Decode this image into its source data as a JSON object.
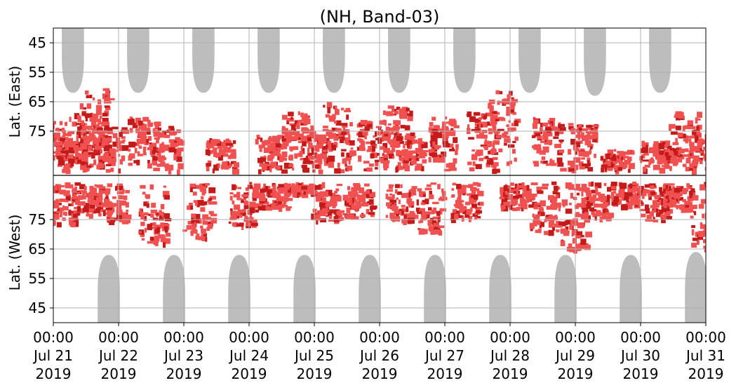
{
  "chart_data": {
    "type": "heatmap",
    "title": "(NH, Band-03)",
    "ylabel_east": "Lat. (East)",
    "ylabel_west": "Lat. (West)",
    "x_range_days": [
      "2019-07-21",
      "2019-07-31"
    ],
    "x_ticks": [
      {
        "time": "00:00",
        "date": "Jul 21",
        "year": "2019"
      },
      {
        "time": "00:00",
        "date": "Jul 22",
        "year": "2019"
      },
      {
        "time": "00:00",
        "date": "Jul 23",
        "year": "2019"
      },
      {
        "time": "00:00",
        "date": "Jul 24",
        "year": "2019"
      },
      {
        "time": "00:00",
        "date": "Jul 25",
        "year": "2019"
      },
      {
        "time": "00:00",
        "date": "Jul 26",
        "year": "2019"
      },
      {
        "time": "00:00",
        "date": "Jul 27",
        "year": "2019"
      },
      {
        "time": "00:00",
        "date": "Jul 28",
        "year": "2019"
      },
      {
        "time": "00:00",
        "date": "Jul 29",
        "year": "2019"
      },
      {
        "time": "00:00",
        "date": "Jul 30",
        "year": "2019"
      },
      {
        "time": "00:00",
        "date": "Jul 31",
        "year": "2019"
      }
    ],
    "y_ticks_east": [
      "45",
      "55",
      "65",
      "75"
    ],
    "y_ticks_west": [
      "75",
      "65",
      "55",
      "45"
    ],
    "y_tick_values_east": [
      45,
      55,
      65,
      75
    ],
    "y_tick_values_west": [
      75,
      65,
      55,
      45
    ],
    "lat_range_per_hemisphere": [
      40,
      90
    ],
    "grid": true,
    "colors": {
      "grey_region": "#bdbdbd",
      "light_red": "#f05050",
      "dark_red": "#c41a1a",
      "grid": "#b0b0b0",
      "divider": "#000000"
    },
    "grey_east": [
      {
        "day": 0.3,
        "lat_min": 62
      },
      {
        "day": 1.3,
        "lat_min": 62
      },
      {
        "day": 2.3,
        "lat_min": 62
      },
      {
        "day": 3.3,
        "lat_min": 62
      },
      {
        "day": 4.3,
        "lat_min": 62
      },
      {
        "day": 5.3,
        "lat_min": 62
      },
      {
        "day": 6.3,
        "lat_min": 62
      },
      {
        "day": 7.3,
        "lat_min": 62
      },
      {
        "day": 8.3,
        "lat_min": 63
      },
      {
        "day": 9.3,
        "lat_min": 62
      }
    ],
    "grey_west": [
      {
        "day": 0.85,
        "lat_min": 63
      },
      {
        "day": 1.85,
        "lat_min": 63
      },
      {
        "day": 2.85,
        "lat_min": 63
      },
      {
        "day": 3.85,
        "lat_min": 63
      },
      {
        "day": 4.85,
        "lat_min": 63
      },
      {
        "day": 5.85,
        "lat_min": 63
      },
      {
        "day": 6.85,
        "lat_min": 63
      },
      {
        "day": 7.85,
        "lat_min": 63
      },
      {
        "day": 8.85,
        "lat_min": 63
      },
      {
        "day": 9.85,
        "lat_min": 64
      }
    ],
    "red_east": [
      {
        "day": 0.05,
        "lat_min": 70,
        "lat_max": 88
      },
      {
        "day": 0.25,
        "lat_min": 78,
        "lat_max": 88
      },
      {
        "day": 0.5,
        "lat_min": 68,
        "lat_max": 88
      },
      {
        "day": 0.62,
        "lat_min": 60,
        "lat_max": 88
      },
      {
        "day": 0.85,
        "lat_min": 73,
        "lat_max": 88
      },
      {
        "day": 1.35,
        "lat_min": 70,
        "lat_max": 86
      },
      {
        "day": 1.7,
        "lat_min": 73,
        "lat_max": 88
      },
      {
        "day": 2.55,
        "lat_min": 77,
        "lat_max": 88
      },
      {
        "day": 3.3,
        "lat_min": 76,
        "lat_max": 88
      },
      {
        "day": 3.7,
        "lat_min": 68,
        "lat_max": 88
      },
      {
        "day": 4.0,
        "lat_min": 73,
        "lat_max": 88
      },
      {
        "day": 4.35,
        "lat_min": 65,
        "lat_max": 88
      },
      {
        "day": 4.85,
        "lat_min": 71,
        "lat_max": 88
      },
      {
        "day": 5.25,
        "lat_min": 66,
        "lat_max": 88
      },
      {
        "day": 5.45,
        "lat_min": 76,
        "lat_max": 88
      },
      {
        "day": 5.95,
        "lat_min": 70,
        "lat_max": 88
      },
      {
        "day": 6.55,
        "lat_min": 68,
        "lat_max": 88
      },
      {
        "day": 6.85,
        "lat_min": 61,
        "lat_max": 88
      },
      {
        "day": 7.55,
        "lat_min": 70,
        "lat_max": 88
      },
      {
        "day": 8.1,
        "lat_min": 72,
        "lat_max": 88
      },
      {
        "day": 8.6,
        "lat_min": 81,
        "lat_max": 88
      },
      {
        "day": 9.2,
        "lat_min": 78,
        "lat_max": 88
      },
      {
        "day": 9.65,
        "lat_min": 68,
        "lat_max": 88
      },
      {
        "day": 9.95,
        "lat_min": 76,
        "lat_max": 88
      }
    ],
    "red_west": [
      {
        "day": 0.1,
        "lat_min": 74,
        "lat_max": 88
      },
      {
        "day": 0.5,
        "lat_min": 77,
        "lat_max": 88
      },
      {
        "day": 0.9,
        "lat_min": 75,
        "lat_max": 88
      },
      {
        "day": 1.5,
        "lat_min": 67,
        "lat_max": 88
      },
      {
        "day": 2.2,
        "lat_min": 69,
        "lat_max": 88
      },
      {
        "day": 2.9,
        "lat_min": 73,
        "lat_max": 88
      },
      {
        "day": 3.35,
        "lat_min": 79,
        "lat_max": 88
      },
      {
        "day": 3.75,
        "lat_min": 84,
        "lat_max": 88
      },
      {
        "day": 4.15,
        "lat_min": 75,
        "lat_max": 88
      },
      {
        "day": 4.65,
        "lat_min": 76,
        "lat_max": 88
      },
      {
        "day": 5.3,
        "lat_min": 75,
        "lat_max": 88
      },
      {
        "day": 5.75,
        "lat_min": 71,
        "lat_max": 88
      },
      {
        "day": 6.3,
        "lat_min": 75,
        "lat_max": 88
      },
      {
        "day": 7.05,
        "lat_min": 79,
        "lat_max": 88
      },
      {
        "day": 7.5,
        "lat_min": 71,
        "lat_max": 88
      },
      {
        "day": 7.95,
        "lat_min": 65,
        "lat_max": 88
      },
      {
        "day": 8.3,
        "lat_min": 76,
        "lat_max": 88
      },
      {
        "day": 8.75,
        "lat_min": 80,
        "lat_max": 88
      },
      {
        "day": 9.2,
        "lat_min": 75,
        "lat_max": 88
      },
      {
        "day": 9.55,
        "lat_min": 79,
        "lat_max": 88
      },
      {
        "day": 9.97,
        "lat_min": 65,
        "lat_max": 88
      }
    ]
  }
}
